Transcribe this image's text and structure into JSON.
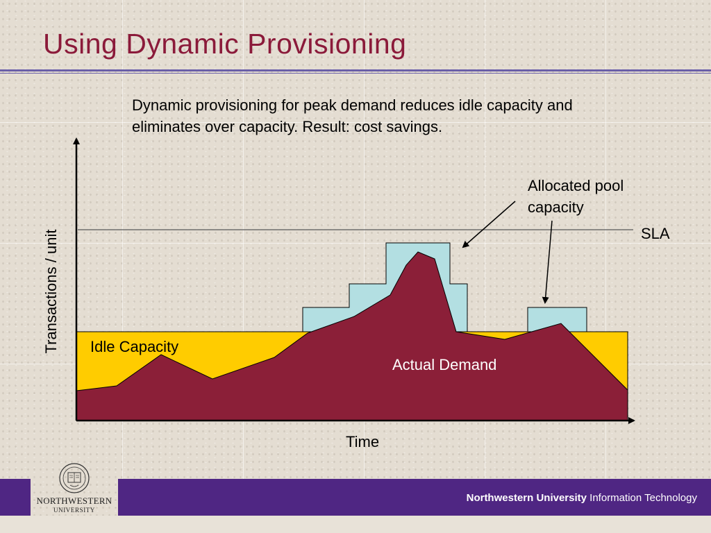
{
  "slide": {
    "title": "Using Dynamic Provisioning",
    "description": "Dynamic provisioning for peak demand reduces idle capacity and eliminates over capacity. Result: cost savings."
  },
  "chart_data": {
    "type": "area",
    "xlabel": "Time",
    "ylabel": "Transactions / unit",
    "labels": {
      "sla": "SLA",
      "allocated_pool": "Allocated pool capacity",
      "idle_capacity": "Idle Capacity",
      "actual_demand": "Actual Demand"
    },
    "colors": {
      "demand": "#8b1f38",
      "idle": "#ffcc00",
      "allocated_pool": "#b3dfe2",
      "sla_line": "#555555",
      "axis": "#000000"
    }
  },
  "footer": {
    "university": "Northwestern University",
    "department": "Information Technology",
    "logo_name": "NORTHWESTERN",
    "logo_sub": "UNIVERSITY"
  }
}
